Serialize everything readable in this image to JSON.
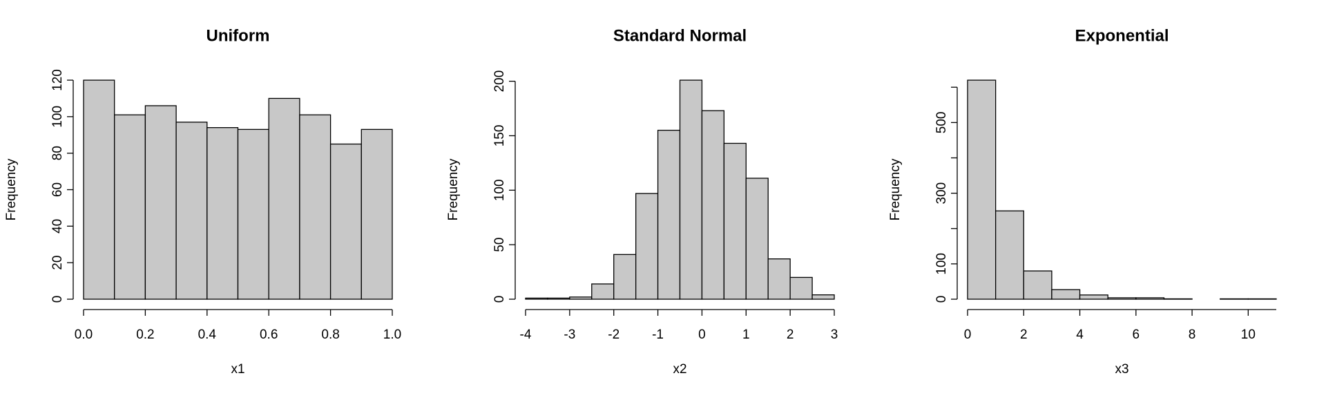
{
  "chart_data": [
    {
      "type": "histogram",
      "title": "Uniform",
      "xlabel": "x1",
      "ylabel": "Frequency",
      "color": "#c8c8c8",
      "bins": [
        0,
        0.1,
        0.2,
        0.3,
        0.4,
        0.5,
        0.6,
        0.7,
        0.8,
        0.9,
        1.0
      ],
      "values": [
        120,
        101,
        106,
        97,
        94,
        93,
        110,
        101,
        85,
        93
      ],
      "xlim": [
        0,
        1
      ],
      "xticks": [
        {
          "value": 0,
          "label": "0.0"
        },
        0.2,
        0.4,
        0.6,
        0.8,
        {
          "value": 1,
          "label": "1.0"
        }
      ],
      "ylim": [
        0,
        120
      ],
      "yticks": [
        0,
        20,
        40,
        60,
        80,
        100,
        120
      ]
    },
    {
      "type": "histogram",
      "title": "Standard Normal",
      "xlabel": "x2",
      "ylabel": "Frequency",
      "color": "#c8c8c8",
      "bins": [
        -4,
        -3.5,
        -3,
        -2.5,
        -2,
        -1.5,
        -1,
        -0.5,
        0,
        0.5,
        1,
        1.5,
        2,
        2.5,
        3
      ],
      "values": [
        1,
        1,
        2,
        14,
        41,
        97,
        155,
        201,
        173,
        143,
        111,
        37,
        20,
        4
      ],
      "xlim": [
        -4,
        3
      ],
      "xticks": [
        -4,
        -3,
        -2,
        -1,
        0,
        1,
        2,
        3
      ],
      "ylim": [
        0,
        201
      ],
      "yticks": [
        0,
        50,
        100,
        150,
        200
      ]
    },
    {
      "type": "histogram",
      "title": "Exponential",
      "xlabel": "x3",
      "ylabel": "Frequency",
      "color": "#c8c8c8",
      "bins": [
        0,
        1,
        2,
        3,
        4,
        5,
        6,
        7,
        8,
        9,
        10,
        11
      ],
      "values": [
        620,
        250,
        80,
        27,
        12,
        4,
        4,
        1,
        0,
        1,
        1
      ],
      "xlim": [
        0,
        11
      ],
      "xticks": [
        0,
        2,
        4,
        6,
        8,
        10
      ],
      "ylim": [
        0,
        620
      ],
      "yticks": [
        0,
        100,
        300,
        500
      ],
      "ytick_marks": [
        0,
        100,
        200,
        300,
        400,
        500,
        600
      ]
    }
  ]
}
